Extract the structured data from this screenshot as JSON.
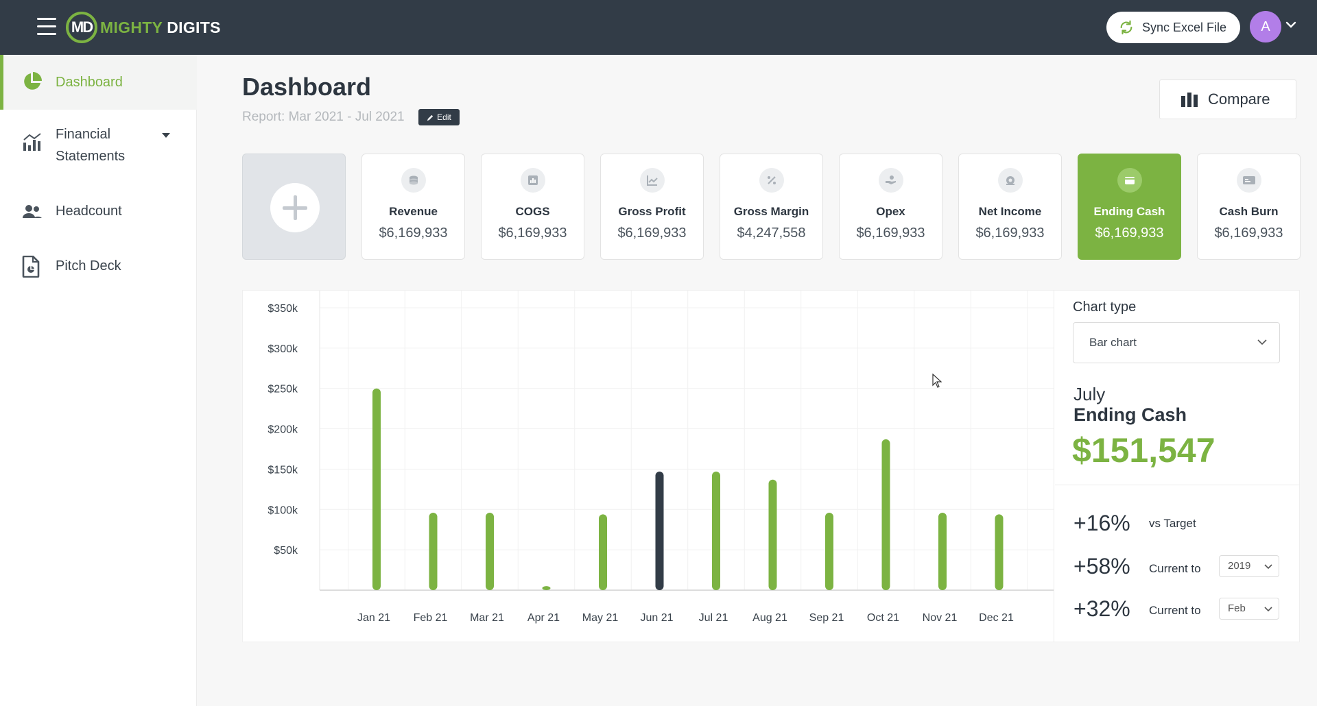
{
  "brand": {
    "name_part1": "MIGHTY",
    "name_part2": "DIGITS",
    "mark": "MD",
    "accent": "#7cb342",
    "topbar_color": "#323c47"
  },
  "topbar": {
    "sync_label": "Sync Excel File",
    "avatar_initial": "A"
  },
  "sidebar": {
    "items": [
      {
        "label": "Dashboard",
        "icon": "pie-chart-icon",
        "active": true
      },
      {
        "label": "Financial Statements",
        "icon": "bar-chart-icon",
        "active": false
      },
      {
        "label": "Headcount",
        "icon": "people-icon",
        "active": false
      },
      {
        "label": "Pitch Deck",
        "icon": "document-icon",
        "active": false
      }
    ]
  },
  "header": {
    "title": "Dashboard",
    "report_range": "Report: Mar 2021 - Jul 2021",
    "edit_label": "Edit",
    "compare_label": "Compare"
  },
  "kpis": [
    {
      "name": "Revenue",
      "value": "$6,169,933",
      "icon": "coins-icon",
      "active": false
    },
    {
      "name": "COGS",
      "value": "$6,169,933",
      "icon": "report-icon",
      "active": false
    },
    {
      "name": "Gross Profit",
      "value": "$6,169,933",
      "icon": "trend-icon",
      "active": false
    },
    {
      "name": "Gross Margin",
      "value": "$4,247,558",
      "icon": "percent-icon",
      "active": false
    },
    {
      "name": "Opex",
      "value": "$6,169,933",
      "icon": "hand-coin-icon",
      "active": false
    },
    {
      "name": "Net Income",
      "value": "$6,169,933",
      "icon": "money-bag-icon",
      "active": false
    },
    {
      "name": "Ending Cash",
      "value": "$6,169,933",
      "icon": "wallet-icon",
      "active": true
    },
    {
      "name": "Cash Burn",
      "value": "$6,169,933",
      "icon": "card-icon",
      "active": false
    }
  ],
  "chart_data": {
    "type": "bar",
    "categories": [
      "Jan 21",
      "Feb 21",
      "Mar 21",
      "Apr 21",
      "May 21",
      "Jun 21",
      "Jul 21",
      "Aug 21",
      "Sep 21",
      "Oct 21",
      "Nov 21",
      "Dec 21"
    ],
    "values": [
      250000,
      96000,
      96000,
      5000,
      94000,
      147000,
      147000,
      137000,
      96000,
      187000,
      96000,
      94000
    ],
    "highlight_index": 5,
    "y_ticks": [
      "$50k",
      "$100k",
      "$150k",
      "$200k",
      "$250k",
      "$300k",
      "$350k"
    ],
    "y_tick_values": [
      50000,
      100000,
      150000,
      200000,
      250000,
      300000,
      350000
    ],
    "ylim": [
      0,
      350000
    ],
    "grid": true,
    "bar_color": "#7cb342",
    "highlight_color": "#323c47"
  },
  "side_panel": {
    "chart_type_label": "Chart type",
    "chart_type_value": "Bar chart",
    "month": "July",
    "metric": "Ending Cash",
    "big_value": "$151,547",
    "comparisons": [
      {
        "pct": "+16%",
        "label": "vs Target"
      },
      {
        "pct": "+58%",
        "label": "Current to",
        "select": "2019"
      },
      {
        "pct": "+32%",
        "label": "Current to",
        "select": "Feb"
      }
    ]
  }
}
